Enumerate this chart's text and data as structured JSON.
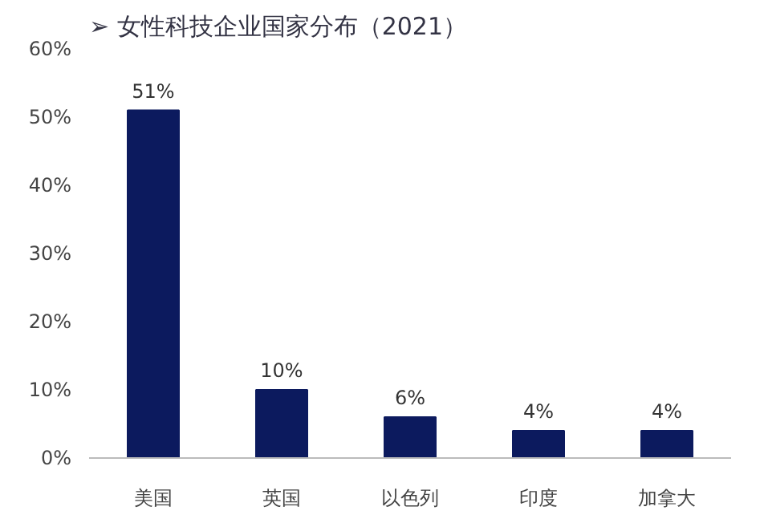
{
  "chart_data": {
    "type": "bar",
    "title": "➢ 女性科技企业国家分布（2021）",
    "categories": [
      "美国",
      "英国",
      "以色列",
      "印度",
      "加拿大"
    ],
    "values": [
      51,
      10,
      6,
      4,
      4
    ],
    "value_labels": [
      "51%",
      "10%",
      "6%",
      "4%",
      "4%"
    ],
    "color": "#0c1a5e",
    "ylim": [
      0,
      60
    ],
    "yticks": [
      {
        "value": 0,
        "label": "0%"
      },
      {
        "value": 10,
        "label": "10%"
      },
      {
        "value": 20,
        "label": "20%"
      },
      {
        "value": 30,
        "label": "30%"
      },
      {
        "value": 40,
        "label": "40%"
      },
      {
        "value": 50,
        "label": "50%"
      },
      {
        "value": 60,
        "label": "60%"
      }
    ],
    "grid": false
  }
}
